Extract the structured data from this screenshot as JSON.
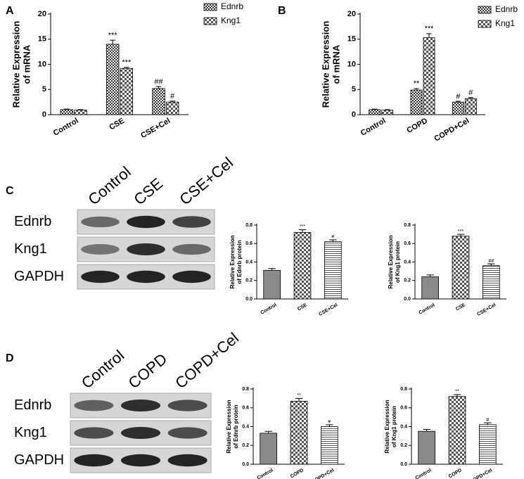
{
  "chart_data": [
    {
      "type": "bar",
      "panel": "A",
      "ylabel": [
        "Relative Expression",
        "of mRNA"
      ],
      "categories": [
        "Control",
        "CSE",
        "CSE+Cel"
      ],
      "series": [
        {
          "name": "Ednrb",
          "values": [
            1.0,
            14.0,
            5.2
          ],
          "errors": [
            0.1,
            0.8,
            0.4
          ],
          "marks": [
            null,
            "***",
            "##"
          ]
        },
        {
          "name": "Kng1",
          "values": [
            0.9,
            9.2,
            2.5
          ],
          "errors": [
            0.1,
            0.2,
            0.2
          ],
          "marks": [
            null,
            "***",
            "#"
          ]
        }
      ],
      "ylim": [
        0,
        20
      ],
      "yticks": [
        0,
        5,
        10,
        15,
        20
      ]
    },
    {
      "type": "bar",
      "panel": "B",
      "ylabel": [
        "Relative Expression",
        "of mRNA"
      ],
      "categories": [
        "Control",
        "COPD",
        "COPD+Cel"
      ],
      "series": [
        {
          "name": "Ednrb",
          "values": [
            1.0,
            4.9,
            2.5
          ],
          "errors": [
            0.1,
            0.3,
            0.15
          ],
          "marks": [
            null,
            "**",
            "#"
          ]
        },
        {
          "name": "Kng1",
          "values": [
            0.9,
            15.3,
            3.2
          ],
          "errors": [
            0.1,
            0.8,
            0.2
          ],
          "marks": [
            null,
            "***",
            "#"
          ]
        }
      ],
      "ylim": [
        0,
        20
      ],
      "yticks": [
        0,
        5,
        10,
        15,
        20
      ]
    },
    {
      "type": "bar",
      "ylabel": [
        "Relative Expression",
        "of Ednrb protein"
      ],
      "categories": [
        "Control",
        "CSE",
        "CSE+Cel"
      ],
      "values": [
        0.31,
        0.72,
        0.62
      ],
      "errors": [
        0.02,
        0.03,
        0.02
      ],
      "marks": [
        null,
        "***",
        "#"
      ],
      "ylim": [
        0,
        0.8
      ],
      "yticks": [
        {
          "value": 0,
          "label": "0.0"
        },
        0.2,
        0.4,
        0.6,
        0.8
      ]
    },
    {
      "type": "bar",
      "ylabel": [
        "Relative Expression",
        "of Kng1 protein"
      ],
      "categories": [
        "Control",
        "CSE",
        "CSE+Cel"
      ],
      "values": [
        0.24,
        0.68,
        0.36
      ],
      "errors": [
        0.02,
        0.02,
        0.02
      ],
      "marks": [
        null,
        "***",
        "##"
      ],
      "ylim": [
        0,
        0.8
      ],
      "yticks": [
        {
          "value": 0,
          "label": "0.0"
        },
        0.2,
        0.4,
        0.6,
        0.8
      ]
    },
    {
      "type": "bar",
      "ylabel": [
        "Relative Expression",
        "of Ednrb protein"
      ],
      "categories": [
        "Control",
        "COPD",
        "COPD+Cel"
      ],
      "values": [
        0.33,
        0.67,
        0.4
      ],
      "errors": [
        0.02,
        0.03,
        0.02
      ],
      "marks": [
        null,
        "**",
        "#"
      ],
      "ylim": [
        0,
        0.8
      ],
      "yticks": [
        {
          "value": 0,
          "label": "0.0"
        },
        0.2,
        0.4,
        0.6,
        0.8
      ]
    },
    {
      "type": "bar",
      "ylabel": [
        "Relative Expression",
        "of Kng1 protein"
      ],
      "categories": [
        "Control",
        "COPD",
        "COPD+Cel"
      ],
      "values": [
        0.35,
        0.72,
        0.42
      ],
      "errors": [
        0.02,
        0.02,
        0.02
      ],
      "marks": [
        null,
        "**",
        "#"
      ],
      "ylim": [
        0,
        0.8
      ],
      "yticks": [
        {
          "value": 0,
          "label": "0.0"
        },
        0.2,
        0.4,
        0.6,
        0.8
      ]
    }
  ],
  "blots": [
    {
      "panel": "C",
      "lanes": [
        "Control",
        "CSE",
        "CSE+Cel"
      ],
      "proteins": [
        "Ednrb",
        "Kng1",
        "GAPDH"
      ]
    },
    {
      "panel": "D",
      "lanes": [
        "Control",
        "COPD",
        "COPD+Cel"
      ],
      "proteins": [
        "Ednrb",
        "Kng1",
        "GAPDH"
      ]
    }
  ]
}
